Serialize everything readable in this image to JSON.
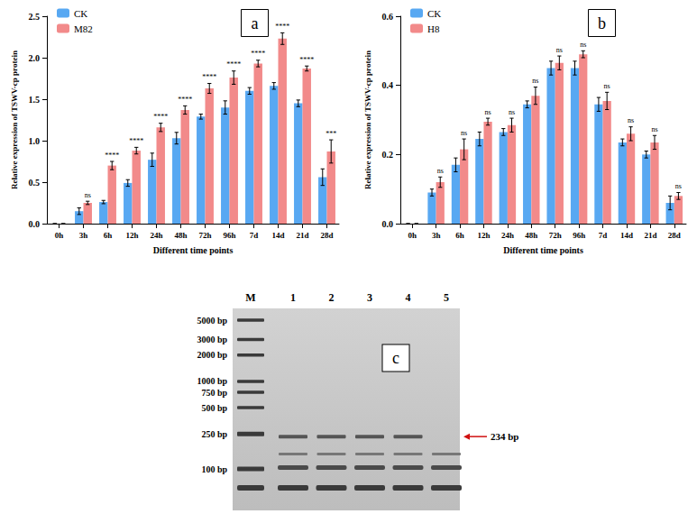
{
  "chart_data": [
    {
      "type": "bar",
      "title": "a",
      "x_label": "Different time points",
      "y_label": "Relative expression of TSWV-cp protein",
      "categories": [
        "0h",
        "3h",
        "6h",
        "12h",
        "24h",
        "48h",
        "72h",
        "96h",
        "7d",
        "14d",
        "21d",
        "28d"
      ],
      "series": [
        {
          "name": "CK",
          "color": "#58a8f2",
          "values": [
            0,
            0.15,
            0.26,
            0.49,
            0.77,
            1.03,
            1.29,
            1.4,
            1.6,
            1.66,
            1.45,
            0.56
          ],
          "errors": [
            0,
            0.04,
            0.02,
            0.04,
            0.08,
            0.07,
            0.03,
            0.08,
            0.04,
            0.04,
            0.04,
            0.1
          ]
        },
        {
          "name": "M82",
          "color": "#f28a8a",
          "values": [
            0,
            0.25,
            0.7,
            0.88,
            1.16,
            1.37,
            1.63,
            1.76,
            1.93,
            2.23,
            1.87,
            0.87
          ],
          "errors": [
            0,
            0.02,
            0.05,
            0.04,
            0.05,
            0.05,
            0.06,
            0.08,
            0.04,
            0.07,
            0.03,
            0.14
          ]
        }
      ],
      "significance": [
        null,
        "ns",
        "****",
        "****",
        "****",
        "****",
        "****",
        "****",
        "****",
        "****",
        "****",
        "***"
      ],
      "ylim": [
        0,
        2.5
      ],
      "yticks": [
        {
          "value": 0,
          "label": "0.0"
        },
        0.5,
        {
          "value": 1,
          "label": "1.0"
        },
        1.5,
        {
          "value": 2,
          "label": "2.0"
        },
        2.5
      ],
      "grid": false,
      "legend": "upper left"
    },
    {
      "type": "bar",
      "title": "b",
      "x_label": "Different time points",
      "y_label": "Relative expression of TSWV-cp protein",
      "categories": [
        "0h",
        "3h",
        "6h",
        "12h",
        "24h",
        "48h",
        "72h",
        "96h",
        "7d",
        "14d",
        "21d",
        "28d"
      ],
      "series": [
        {
          "name": "CK",
          "color": "#58a8f2",
          "values": [
            0,
            0.09,
            0.17,
            0.245,
            0.265,
            0.345,
            0.45,
            0.45,
            0.345,
            0.235,
            0.2,
            0.06
          ],
          "errors": [
            0,
            0.01,
            0.02,
            0.02,
            0.01,
            0.01,
            0.02,
            0.02,
            0.02,
            0.01,
            0.01,
            0.02
          ]
        },
        {
          "name": "H8",
          "color": "#f28a8a",
          "values": [
            0,
            0.12,
            0.215,
            0.295,
            0.285,
            0.37,
            0.465,
            0.49,
            0.355,
            0.26,
            0.235,
            0.08
          ],
          "errors": [
            0,
            0.015,
            0.03,
            0.01,
            0.02,
            0.025,
            0.02,
            0.01,
            0.025,
            0.02,
            0.02,
            0.01
          ]
        }
      ],
      "significance": [
        null,
        "ns",
        "ns",
        "ns",
        "ns",
        "ns",
        "ns",
        "ns",
        "ns",
        "ns",
        "ns",
        "ns"
      ],
      "ylim": [
        0,
        0.6
      ],
      "yticks": [
        {
          "value": 0,
          "label": "0.0"
        },
        0.2,
        0.4,
        0.6
      ],
      "grid": false,
      "legend": "upper left"
    }
  ],
  "gel": {
    "title": "c",
    "lanes": [
      "M",
      "1",
      "2",
      "3",
      "4",
      "5"
    ],
    "ladder": [
      {
        "size": 5000,
        "label": "5000 bp"
      },
      {
        "size": 3000,
        "label": "3000 bp"
      },
      {
        "size": 2000,
        "label": "2000 bp"
      },
      {
        "size": 1000,
        "label": "1000 bp"
      },
      {
        "size": 750,
        "label": "750 bp"
      },
      {
        "size": 500,
        "label": "500 bp"
      },
      {
        "size": 250,
        "label": "250 bp"
      },
      {
        "size": 100,
        "label": "100 bp"
      }
    ],
    "target": {
      "size": 234,
      "label": "234 bp",
      "lanes": [
        "1",
        "2",
        "3",
        "4"
      ]
    }
  }
}
